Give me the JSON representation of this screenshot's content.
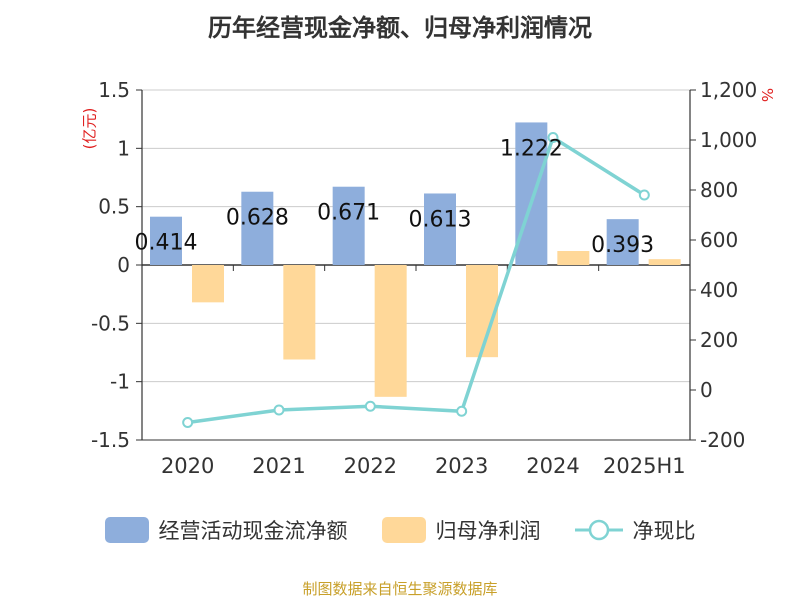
{
  "title": "历年经营现金净额、归母净利润情况",
  "unit_left": "(亿元)",
  "unit_right": "%",
  "source": "制图数据来自恒生聚源数据库",
  "colors": {
    "cash": "#8eaedc",
    "profit": "#ffd899",
    "ratio": "#7fd3d3",
    "grid": "#cccccc",
    "axis": "#333333"
  },
  "chart_data": {
    "type": "bar",
    "categories": [
      "2020",
      "2021",
      "2022",
      "2023",
      "2024",
      "2025H1"
    ],
    "series": [
      {
        "name": "经营活动现金流净额",
        "type": "bar",
        "axis": "left",
        "values": [
          0.414,
          0.628,
          0.671,
          0.613,
          1.222,
          0.393
        ],
        "labels": [
          "0.414",
          "0.628",
          "0.671",
          "0.613",
          "1.222",
          "0.393"
        ]
      },
      {
        "name": "归母净利润",
        "type": "bar",
        "axis": "left",
        "values": [
          -0.32,
          -0.81,
          -1.13,
          -0.79,
          0.12,
          0.05
        ]
      },
      {
        "name": "净现比",
        "type": "line",
        "axis": "right",
        "values": [
          -130,
          -80,
          -65,
          -85,
          1010,
          780
        ]
      }
    ],
    "y_left": {
      "min": -1.5,
      "max": 1.5,
      "ticks": [
        1.5,
        1,
        0.5,
        0,
        -0.5,
        -1,
        -1.5
      ],
      "tick_labels": [
        "1.5",
        "1",
        "0.5",
        "0",
        "-0.5",
        "-1",
        "-1.5"
      ]
    },
    "y_right": {
      "min": -200,
      "max": 1200,
      "ticks": [
        1200,
        1000,
        800,
        600,
        400,
        200,
        0,
        -200
      ],
      "tick_labels": [
        "1,200",
        "1,000",
        "800",
        "600",
        "400",
        "200",
        "0",
        "-200"
      ]
    },
    "grid": true,
    "legend": "bottom"
  }
}
